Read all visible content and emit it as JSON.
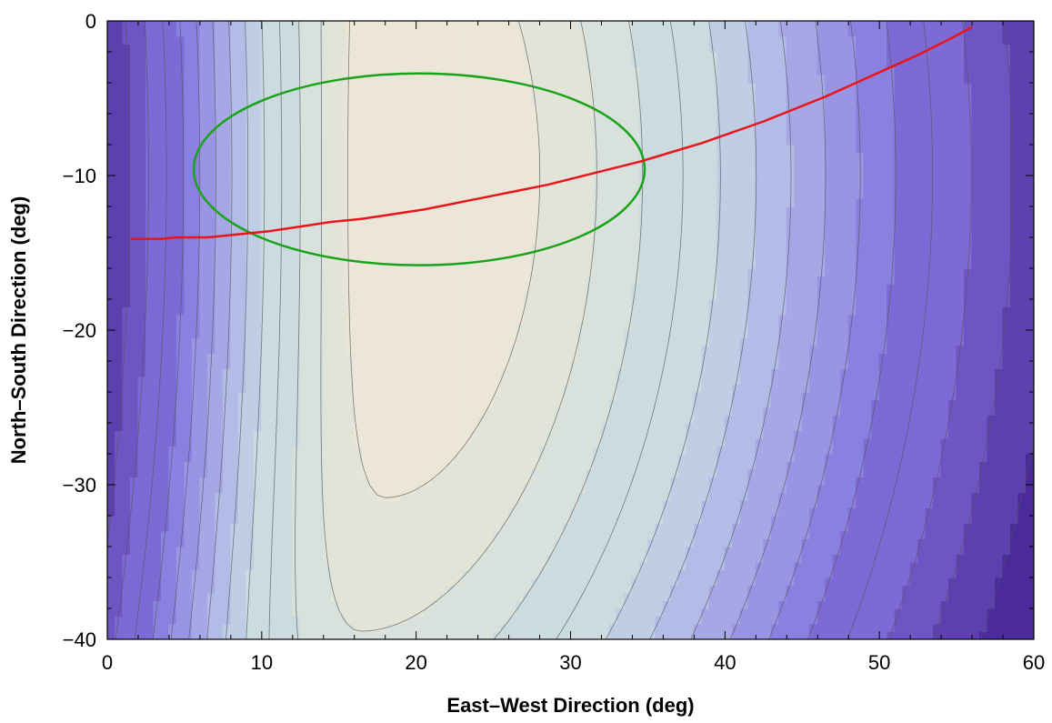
{
  "chart_data": {
    "type": "contour",
    "xlabel": "East–West Direction (deg)",
    "ylabel": "North–South Direction (deg)",
    "xlim": [
      0,
      60
    ],
    "ylim": [
      -40,
      0
    ],
    "x_ticks": [
      0,
      10,
      20,
      30,
      40,
      50,
      60
    ],
    "x_tick_labels": [
      "0",
      "10",
      "20",
      "30",
      "40",
      "50",
      "60"
    ],
    "y_ticks": [
      0,
      -10,
      -20,
      -30,
      -40
    ],
    "y_tick_labels": [
      "0",
      "−10",
      "−20",
      "−30",
      "−40"
    ],
    "grid": false,
    "contour": {
      "levels": 15,
      "palette": [
        "#4b2a9a",
        "#5d3fb0",
        "#6e55c4",
        "#7e6ad4",
        "#8a80e0",
        "#9a94e4",
        "#a6a8e6",
        "#b2bce6",
        "#bfcde5",
        "#cbdbe0",
        "#d8e1dc",
        "#e3e4d8",
        "#ebe6d8"
      ],
      "line_color": "#555555",
      "peak_x": [
        17,
        22
      ],
      "peak_y": -10
    },
    "overlays": [
      {
        "type": "ellipse",
        "color": "#1aa31a",
        "center": [
          20.2,
          -9.6
        ],
        "semi_axes": [
          14.6,
          6.2
        ]
      },
      {
        "type": "line",
        "color": "#e8161c",
        "x": [
          1.5,
          2.5,
          3.5,
          4.5,
          6.5,
          8.5,
          10.5,
          12.5,
          14.5,
          16.5,
          18.5,
          20.5,
          22.5,
          24.5,
          26.5,
          28.5,
          30.5,
          32.5,
          34.5,
          36.5,
          38.5,
          40.5,
          42.5,
          44.5,
          46.5,
          48.5,
          50.5,
          52.5,
          54.5,
          56.0
        ],
        "y": [
          -14.1,
          -14.1,
          -14.1,
          -14.0,
          -14.0,
          -13.8,
          -13.6,
          -13.3,
          -13.0,
          -12.8,
          -12.5,
          -12.2,
          -11.8,
          -11.4,
          -11.0,
          -10.6,
          -10.1,
          -9.6,
          -9.1,
          -8.5,
          -7.9,
          -7.2,
          -6.5,
          -5.7,
          -4.9,
          -4.0,
          -3.1,
          -2.2,
          -1.2,
          -0.4
        ]
      }
    ]
  }
}
